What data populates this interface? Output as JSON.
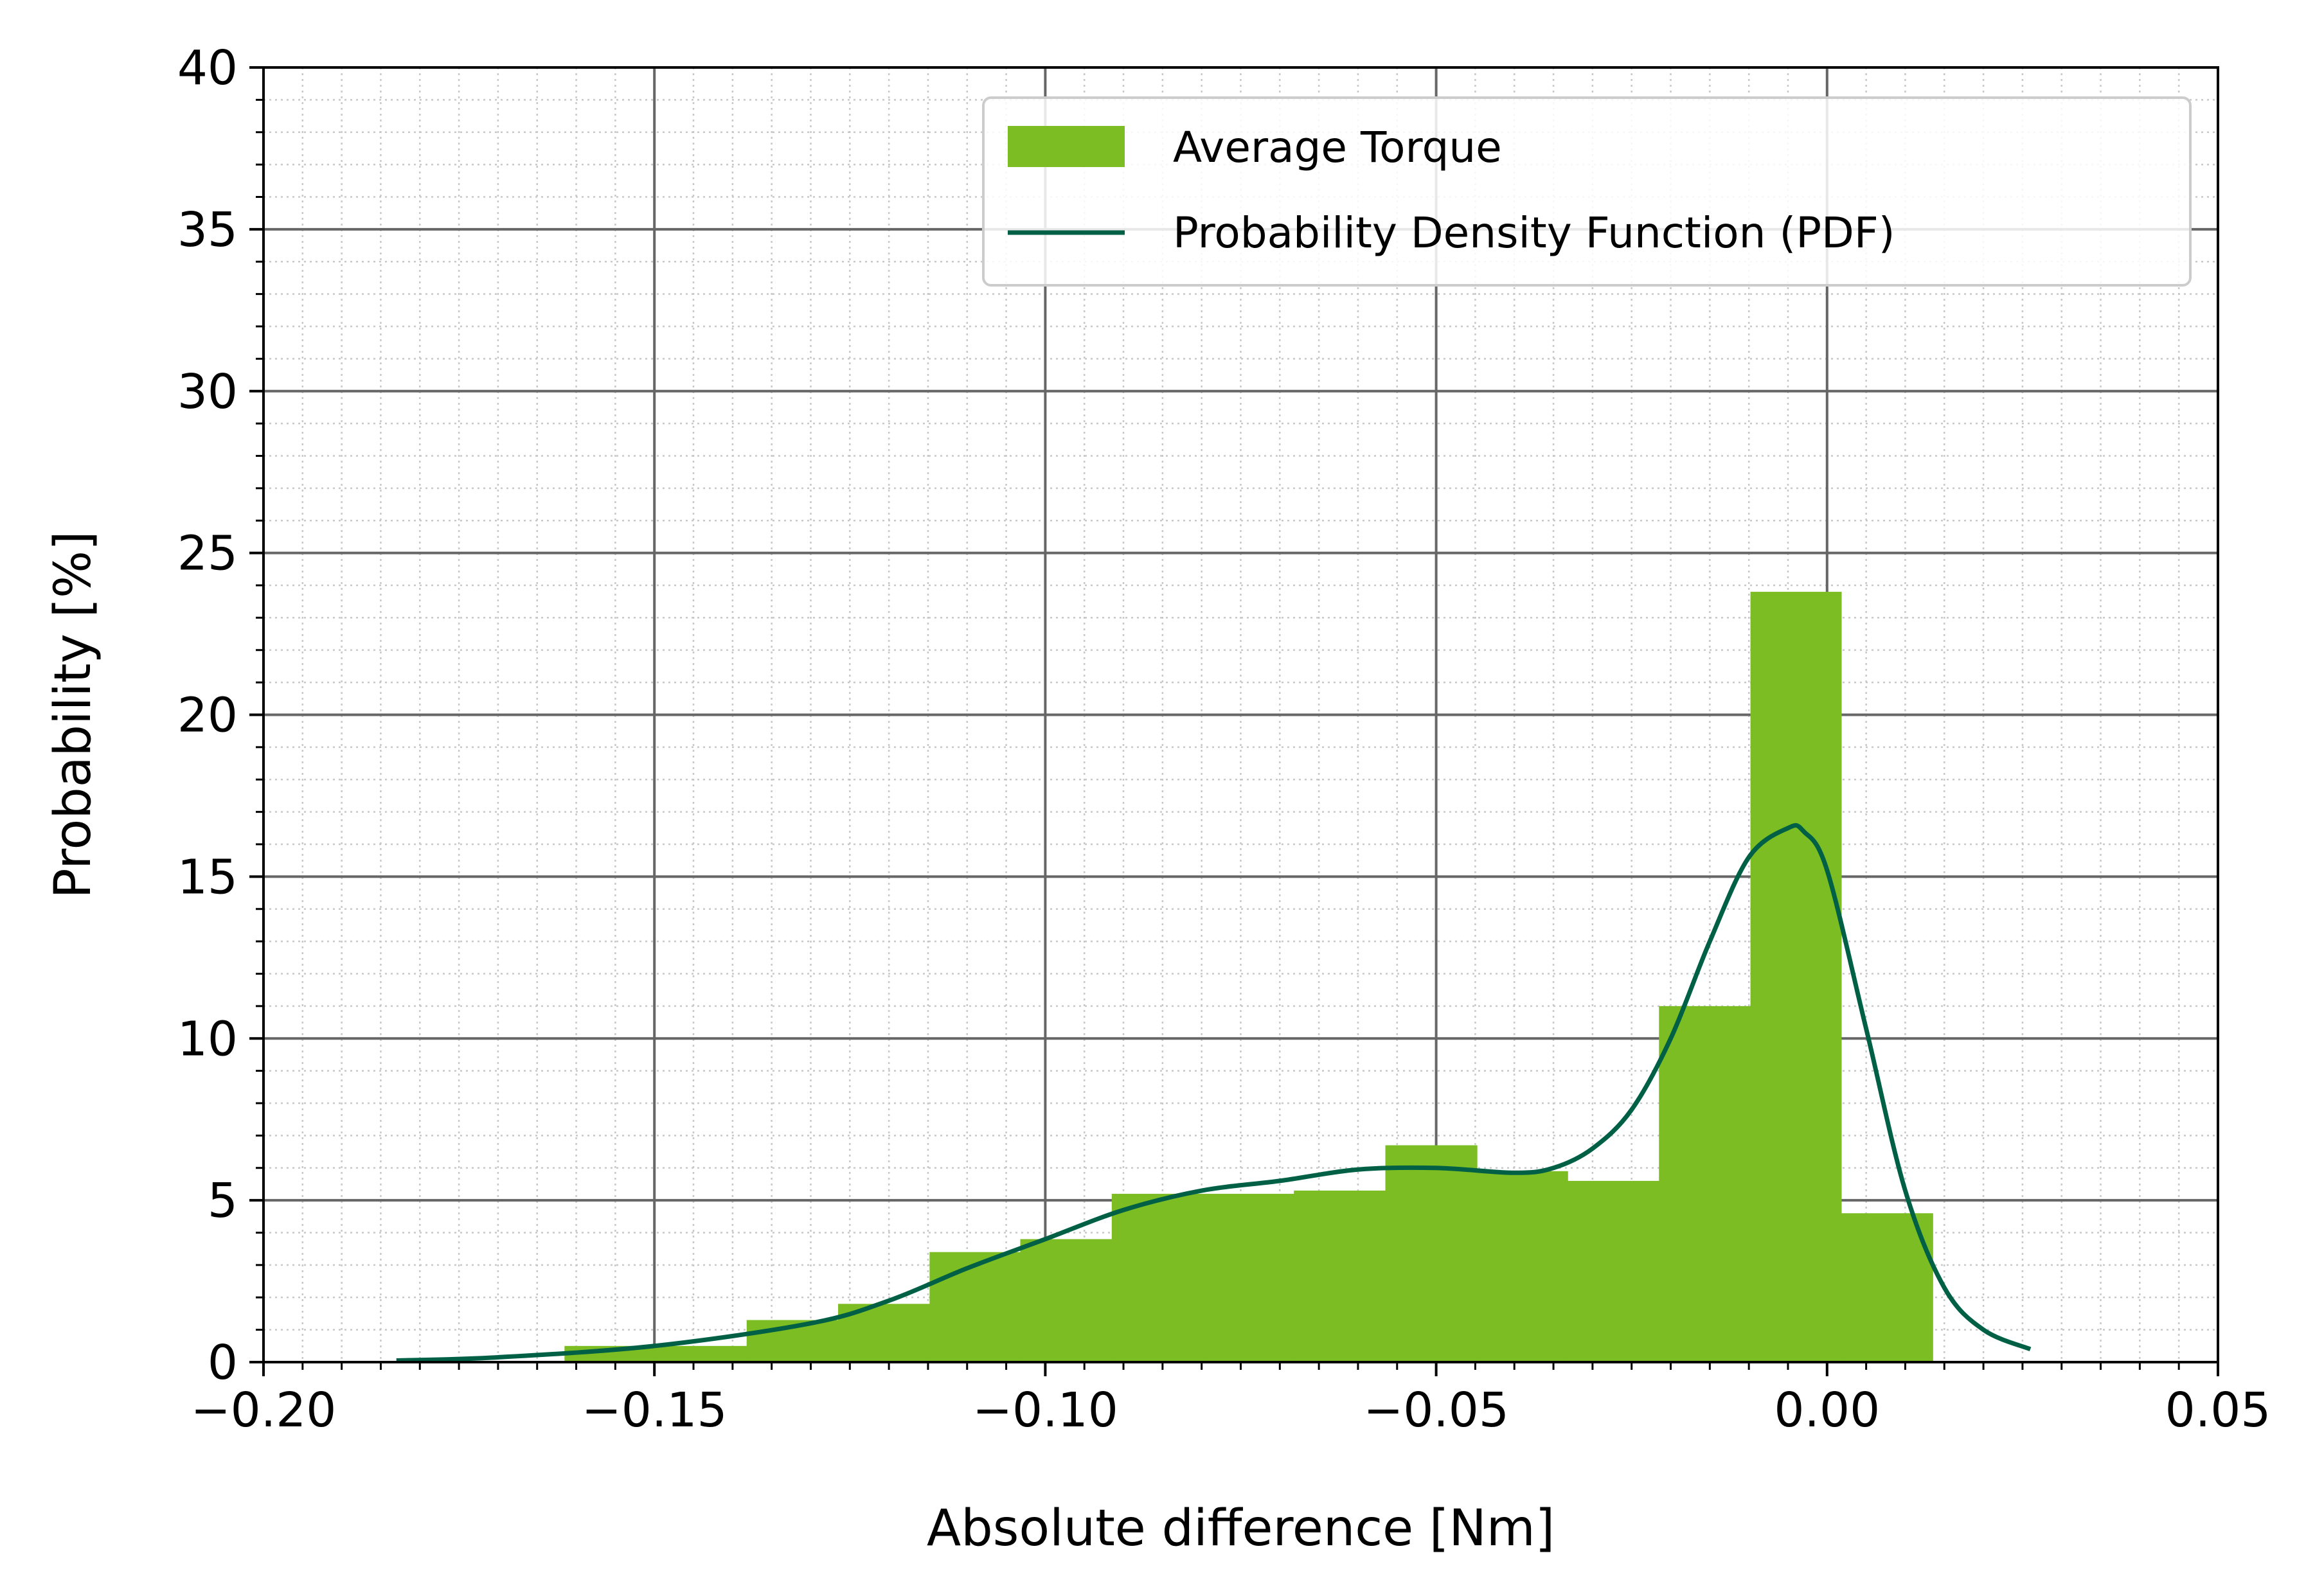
{
  "chart_data": {
    "type": "bar",
    "title": "",
    "xlabel": "Absolute difference [Nm]",
    "ylabel": "Probability [%]",
    "xlim": [
      -0.2,
      0.05
    ],
    "ylim": [
      0,
      40
    ],
    "x_ticks": [
      "−0.20",
      "−0.15",
      "−0.10",
      "−0.05",
      "0.00",
      "0.05"
    ],
    "x_tick_values": [
      -0.2,
      -0.15,
      -0.1,
      -0.05,
      0.0,
      0.05
    ],
    "y_ticks": [
      "0",
      "5",
      "10",
      "15",
      "20",
      "25",
      "30",
      "35",
      "40"
    ],
    "y_tick_values": [
      0,
      5,
      10,
      15,
      20,
      25,
      30,
      35,
      40
    ],
    "grid": "major and minor",
    "legend_position": "top-right",
    "colors": {
      "bars": "#7bbd22",
      "pdf_line": "#006045",
      "major_grid": "#666666",
      "minor_grid": "#c8c8c8"
    },
    "series": [
      {
        "name": "Average Torque",
        "kind": "histogram",
        "bin_edges": [
          -0.1615,
          -0.1498,
          -0.1382,
          -0.1265,
          -0.1148,
          -0.1032,
          -0.0915,
          -0.0798,
          -0.0682,
          -0.0565,
          -0.0448,
          -0.0332,
          -0.0215,
          -0.0098,
          0.0018,
          0.0135
        ],
        "values": [
          0.5,
          0.5,
          1.3,
          1.8,
          3.4,
          3.8,
          5.2,
          5.2,
          5.3,
          6.7,
          5.9,
          5.6,
          11.0,
          23.8,
          4.6
        ]
      },
      {
        "name": "Probability Density Function (PDF)",
        "kind": "line",
        "x": [
          -0.183,
          -0.17,
          -0.15,
          -0.13,
          -0.12,
          -0.11,
          -0.1,
          -0.09,
          -0.08,
          -0.07,
          -0.06,
          -0.05,
          -0.04,
          -0.035,
          -0.03,
          -0.025,
          -0.02,
          -0.015,
          -0.01,
          -0.005,
          -0.003,
          0.0,
          0.005,
          0.01,
          0.015,
          0.02,
          0.026
        ],
        "y": [
          0.05,
          0.15,
          0.5,
          1.2,
          1.9,
          2.9,
          3.8,
          4.7,
          5.3,
          5.6,
          5.95,
          6.0,
          5.85,
          6.0,
          6.6,
          7.8,
          10.0,
          13.0,
          15.6,
          16.5,
          16.4,
          15.2,
          10.3,
          5.3,
          2.3,
          1.0,
          0.4
        ]
      }
    ]
  }
}
